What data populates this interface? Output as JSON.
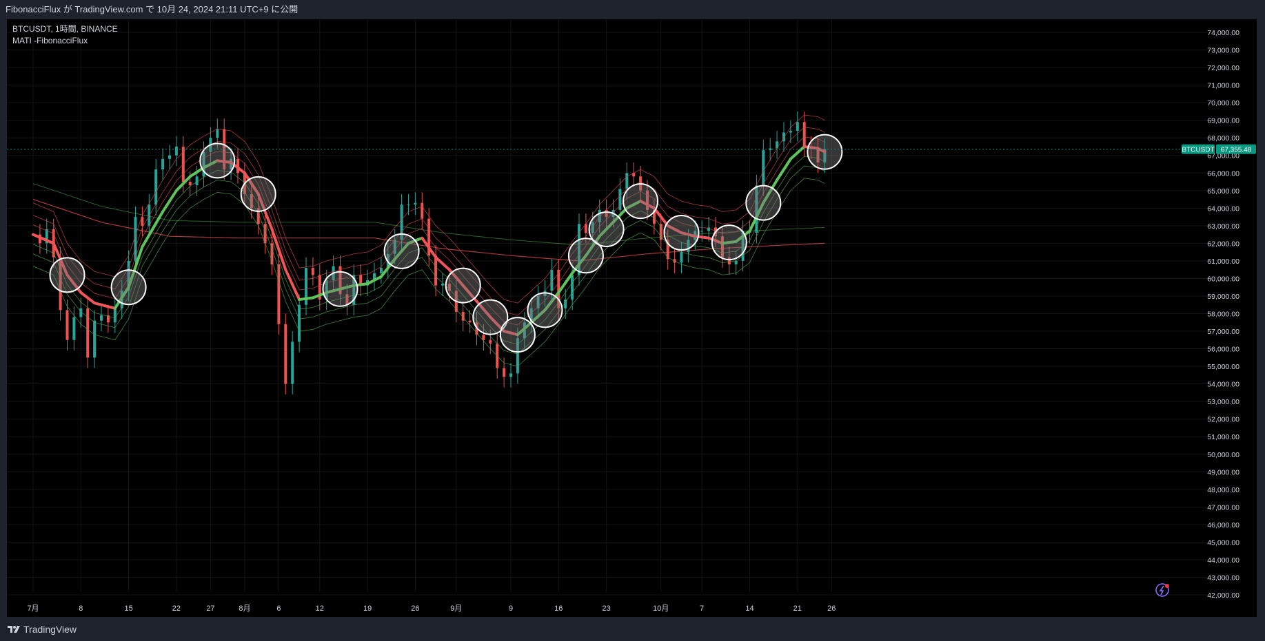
{
  "header": {
    "published_text": "FibonacciFlux が TradingView.com で 10月 24, 2024 21:11 UTC+9 に公開"
  },
  "legend": {
    "symbol_line": "BTCUSDT, 1時間, BINANCE",
    "indicator_line": "MATI -FibonacciFlux"
  },
  "footer": {
    "brand": "TradingView"
  },
  "price_tag": {
    "symbol": "BTCUSDT",
    "price_label": "67,355.48"
  },
  "colors": {
    "background": "#000000",
    "frame": "#1e222d",
    "up": "#5fc35c",
    "down": "#f0555a",
    "price_tag": "#089981"
  },
  "chart_data": {
    "type": "line",
    "symbol": "BTCUSDT",
    "timeframe": "1時間",
    "exchange": "BINANCE",
    "ylim": [
      41500,
      74500
    ],
    "y_ticks": [
      "42,000.00",
      "43,000.00",
      "44,000.00",
      "45,000.00",
      "46,000.00",
      "47,000.00",
      "48,000.00",
      "49,000.00",
      "50,000.00",
      "51,000.00",
      "52,000.00",
      "53,000.00",
      "54,000.00",
      "55,000.00",
      "56,000.00",
      "57,000.00",
      "58,000.00",
      "59,000.00",
      "60,000.00",
      "61,000.00",
      "62,000.00",
      "63,000.00",
      "64,000.00",
      "65,000.00",
      "66,000.00",
      "67,000.00",
      "68,000.00",
      "69,000.00",
      "70,000.00",
      "71,000.00",
      "72,000.00",
      "73,000.00",
      "74,000.00"
    ],
    "x_ticks": [
      "7月",
      "8",
      "15",
      "22",
      "27",
      "8月",
      "6",
      "12",
      "19",
      "26",
      "9月",
      "9",
      "16",
      "23",
      "10月",
      "7",
      "14",
      "21",
      "26"
    ],
    "x_tick_days": [
      0,
      7,
      14,
      21,
      26,
      31,
      36,
      42,
      49,
      56,
      62,
      70,
      77,
      84,
      92,
      98,
      105,
      112,
      117
    ],
    "last_price": 67355.48,
    "price": {
      "name": "BTCUSDT",
      "points": [
        [
          0,
          62500
        ],
        [
          1,
          62000
        ],
        [
          2,
          62800
        ],
        [
          3,
          61200
        ],
        [
          4,
          58200
        ],
        [
          5,
          56500
        ],
        [
          6,
          57800
        ],
        [
          7,
          58300
        ],
        [
          8,
          55500
        ],
        [
          9,
          57600
        ],
        [
          10,
          57900
        ],
        [
          11,
          57500
        ],
        [
          12,
          58300
        ],
        [
          13,
          59300
        ],
        [
          14,
          61000
        ],
        [
          15,
          63500
        ],
        [
          16,
          63000
        ],
        [
          17,
          64200
        ],
        [
          18,
          66200
        ],
        [
          19,
          66800
        ],
        [
          20,
          67000
        ],
        [
          21,
          67500
        ],
        [
          22,
          65500
        ],
        [
          23,
          65300
        ],
        [
          24,
          65800
        ],
        [
          25,
          67200
        ],
        [
          26,
          68000
        ],
        [
          27,
          68500
        ],
        [
          28,
          66200
        ],
        [
          29,
          66800
        ],
        [
          30,
          66000
        ],
        [
          31,
          64800
        ],
        [
          32,
          64000
        ],
        [
          33,
          63100
        ],
        [
          34,
          62000
        ],
        [
          35,
          60800
        ],
        [
          36,
          57400
        ],
        [
          37,
          54000
        ],
        [
          38,
          56400
        ],
        [
          39,
          58500
        ],
        [
          40,
          60600
        ],
        [
          41,
          60200
        ],
        [
          42,
          58800
        ],
        [
          43,
          59900
        ],
        [
          44,
          60700
        ],
        [
          45,
          59100
        ],
        [
          46,
          58500
        ],
        [
          47,
          60200
        ],
        [
          48,
          59600
        ],
        [
          49,
          59900
        ],
        [
          50,
          60300
        ],
        [
          51,
          60600
        ],
        [
          52,
          61400
        ],
        [
          53,
          62200
        ],
        [
          54,
          64200
        ],
        [
          55,
          64200
        ],
        [
          56,
          64300
        ],
        [
          57,
          63400
        ],
        [
          58,
          61300
        ],
        [
          59,
          59600
        ],
        [
          60,
          59700
        ],
        [
          61,
          59300
        ],
        [
          62,
          58100
        ],
        [
          63,
          57600
        ],
        [
          64,
          57500
        ],
        [
          65,
          56800
        ],
        [
          66,
          56500
        ],
        [
          67,
          56300
        ],
        [
          68,
          54900
        ],
        [
          69,
          54400
        ],
        [
          70,
          54600
        ],
        [
          71,
          56600
        ],
        [
          72,
          57500
        ],
        [
          73,
          58300
        ],
        [
          74,
          59000
        ],
        [
          75,
          59300
        ],
        [
          76,
          60500
        ],
        [
          77,
          58300
        ],
        [
          78,
          58800
        ],
        [
          79,
          60200
        ],
        [
          80,
          63100
        ],
        [
          81,
          62600
        ],
        [
          82,
          63200
        ],
        [
          83,
          63900
        ],
        [
          84,
          63500
        ],
        [
          85,
          63900
        ],
        [
          86,
          65100
        ],
        [
          87,
          66000
        ],
        [
          88,
          65800
        ],
        [
          89,
          65000
        ],
        [
          90,
          63900
        ],
        [
          91,
          63100
        ],
        [
          92,
          62200
        ],
        [
          93,
          61100
        ],
        [
          94,
          60900
        ],
        [
          95,
          61500
        ],
        [
          96,
          62200
        ],
        [
          97,
          62700
        ],
        [
          98,
          62700
        ],
        [
          99,
          62900
        ],
        [
          100,
          62400
        ],
        [
          101,
          61200
        ],
        [
          102,
          60800
        ],
        [
          103,
          61000
        ],
        [
          104,
          62700
        ],
        [
          105,
          62600
        ],
        [
          106,
          65300
        ],
        [
          107,
          67300
        ],
        [
          108,
          67400
        ],
        [
          109,
          67800
        ],
        [
          110,
          68300
        ],
        [
          111,
          68400
        ],
        [
          112,
          68900
        ],
        [
          113,
          67500
        ],
        [
          114,
          67400
        ],
        [
          115,
          66600
        ],
        [
          116,
          67355
        ]
      ]
    },
    "ribbon": {
      "name": "MATI -FibonacciFlux",
      "fast": [
        [
          0,
          62500
        ],
        [
          3,
          62000
        ],
        [
          5,
          60200
        ],
        [
          7,
          59200
        ],
        [
          9,
          58600
        ],
        [
          12,
          58300
        ],
        [
          14,
          59500
        ],
        [
          16,
          61800
        ],
        [
          19,
          63800
        ],
        [
          21,
          65000
        ],
        [
          23,
          65800
        ],
        [
          25,
          66300
        ],
        [
          27,
          66700
        ],
        [
          29,
          66600
        ],
        [
          31,
          66000
        ],
        [
          33,
          64800
        ],
        [
          35,
          62800
        ],
        [
          37,
          60500
        ],
        [
          39,
          58800
        ],
        [
          41,
          58900
        ],
        [
          43,
          59200
        ],
        [
          45,
          59400
        ],
        [
          47,
          59600
        ],
        [
          49,
          59700
        ],
        [
          51,
          60100
        ],
        [
          53,
          61100
        ],
        [
          55,
          62000
        ],
        [
          57,
          62300
        ],
        [
          59,
          61200
        ],
        [
          61,
          60500
        ],
        [
          63,
          59600
        ],
        [
          65,
          58700
        ],
        [
          67,
          57800
        ],
        [
          69,
          57000
        ],
        [
          71,
          56800
        ],
        [
          73,
          57500
        ],
        [
          75,
          58200
        ],
        [
          77,
          59200
        ],
        [
          79,
          60300
        ],
        [
          81,
          61300
        ],
        [
          83,
          62400
        ],
        [
          85,
          63200
        ],
        [
          87,
          64000
        ],
        [
          89,
          64400
        ],
        [
          91,
          64000
        ],
        [
          93,
          63000
        ],
        [
          95,
          62600
        ],
        [
          97,
          62400
        ],
        [
          99,
          62300
        ],
        [
          101,
          62000
        ],
        [
          103,
          62100
        ],
        [
          105,
          62700
        ],
        [
          107,
          64300
        ],
        [
          109,
          65600
        ],
        [
          111,
          66800
        ],
        [
          113,
          67500
        ],
        [
          115,
          67400
        ],
        [
          116,
          67200
        ]
      ],
      "slow": [
        [
          0,
          64500
        ],
        [
          10,
          63200
        ],
        [
          20,
          62400
        ],
        [
          30,
          62300
        ],
        [
          40,
          62300
        ],
        [
          50,
          62300
        ],
        [
          60,
          61700
        ],
        [
          70,
          61300
        ],
        [
          80,
          61000
        ],
        [
          90,
          61400
        ],
        [
          100,
          61700
        ],
        [
          110,
          61900
        ],
        [
          116,
          62000
        ]
      ],
      "circled_days": [
        5,
        14,
        27,
        33,
        45,
        54,
        63,
        67,
        71,
        75,
        81,
        84,
        89,
        95,
        102,
        107,
        116
      ]
    }
  }
}
